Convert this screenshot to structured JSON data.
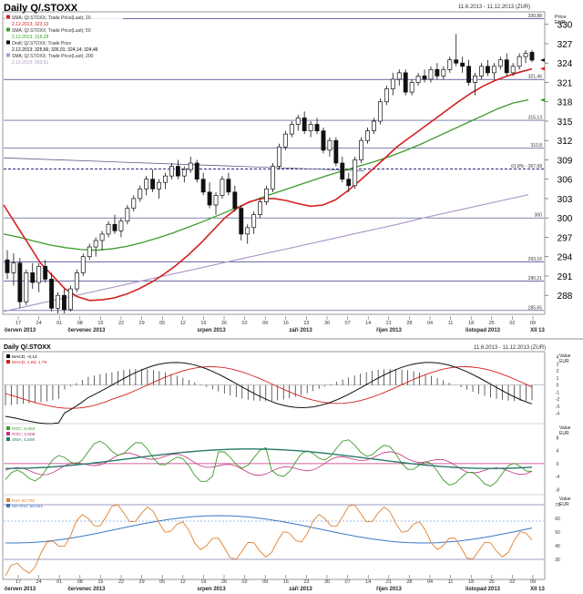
{
  "main": {
    "title": "Daily Q/.STOXX",
    "date_range": "11.6.2013 - 11.12.2013 (ZUR)",
    "price_label": "Price",
    "currency_label": "EUR",
    "legend": [
      {
        "text": "SMA; Q/.STOXX; Trade Price(Last); 20",
        "color": "#d42020"
      },
      {
        "text": "2.12.2013; 323,13",
        "color": "#d42020"
      },
      {
        "text": "SMA; Q/.STOXX; Trade Price(Last); 50",
        "color": "#3a9c2a"
      },
      {
        "text": "2.12.2013; 318,28",
        "color": "#3a9c2a"
      },
      {
        "text": "Ondl; Q/.STOXX; Trade Price",
        "color": "#000000"
      },
      {
        "text": "2.12.2013; 325,66; 326,01; 324,14; 324,46",
        "color": "#000000"
      },
      {
        "text": "SMA; Q/.STOXX; Trade Price(Last); 200",
        "color": "#b09ac8"
      },
      {
        "text": "2.12.2013; 303,61",
        "color": "#b09ac8"
      }
    ],
    "h_levels": [
      {
        "value": 330.88,
        "label": "330,88"
      },
      {
        "value": 321.46,
        "label": "321,46"
      },
      {
        "value": 315.13,
        "label": "315,13"
      },
      {
        "value": 310.8,
        "label": "310,8"
      },
      {
        "value": 307.58,
        "label": "61,8% - 307,58",
        "dashed": true
      },
      {
        "value": 300,
        "label": "300"
      },
      {
        "value": 293.16,
        "label": "293,16"
      },
      {
        "value": 290.21,
        "label": "290,21"
      },
      {
        "value": 285.65,
        "label": "285,65"
      }
    ],
    "y_ticks": [
      "330",
      "327",
      "324",
      "321",
      "318",
      "315",
      "312",
      "309",
      "306",
      "303",
      "300",
      "297",
      "294",
      "291",
      "288"
    ],
    "y_tick_values": [
      330,
      327,
      324,
      321,
      318,
      315,
      312,
      309,
      306,
      303,
      300,
      297,
      294,
      291,
      288
    ],
    "y_range": [
      285.2,
      331.8
    ]
  },
  "x_axis": {
    "day_labels": [
      "17",
      "24",
      "01",
      "08",
      "15",
      "22",
      "29",
      "05",
      "12",
      "19",
      "26",
      "02",
      "09",
      "16",
      "23",
      "30",
      "07",
      "14",
      "21",
      "28",
      "04",
      "11",
      "18",
      "25",
      "02",
      "09"
    ],
    "month_labels": [
      "červen 2013",
      "červenec 2013",
      "srpen 2013",
      "září 2013",
      "říjen 2013",
      "listopad 2013",
      "XII 13"
    ]
  },
  "macd": {
    "legend": [
      {
        "text": "MACD; -0,14",
        "color": "#000000"
      },
      {
        "text": "MACD; 1,66; 1,79",
        "color": "#d42020"
      }
    ],
    "value_label": "Value",
    "currency_label": "EUR",
    "y_ticks": [
      "4",
      "3",
      "2",
      "1",
      "0",
      "-1",
      "-2",
      "-3",
      "-4"
    ],
    "y_tick_values": [
      4,
      3,
      2,
      1,
      0,
      -1,
      -2,
      -3,
      -4
    ],
    "y_range": [
      -5.2,
      4.6
    ]
  },
  "roc": {
    "legend": [
      {
        "text": "ROC; 6,084",
        "color": "#3a9c2a"
      },
      {
        "text": "ROC; 0,508",
        "color": "#c03080"
      },
      {
        "text": "SMA; 4,508",
        "color": "#2a7a6a"
      }
    ],
    "value_label": "Value",
    "currency_label": "EUR",
    "y_ticks": [
      "8",
      "4",
      "0",
      "-4",
      "-8"
    ],
    "y_tick_values": [
      8,
      4,
      0,
      -4,
      -8
    ],
    "y_range": [
      -9,
      12
    ]
  },
  "rsi": {
    "legend": [
      {
        "text": "RSI; 60,782",
        "color": "#e08030"
      },
      {
        "text": "MA-RSI; 58,551",
        "color": "#3a78c8"
      }
    ],
    "value_label": "Value",
    "currency_label": "EUR",
    "y_ticks": [
      "70",
      "60",
      "50",
      "40",
      "30"
    ],
    "y_tick_values": [
      70,
      60,
      50,
      40,
      30
    ],
    "y_range": [
      18,
      76
    ],
    "levels": [
      70,
      58,
      30
    ]
  },
  "chart_data": {
    "type": "candlestick",
    "title": "Daily Q/.STOXX",
    "ylim": [
      285.2,
      331.8
    ],
    "ohlc": [
      [
        293.5,
        295.0,
        290.5,
        291.5
      ],
      [
        291.5,
        294.5,
        289.5,
        293.0
      ],
      [
        293.0,
        293.8,
        286.0,
        287.0
      ],
      [
        287.0,
        292.0,
        286.5,
        291.5
      ],
      [
        291.5,
        293.0,
        289.0,
        290.0
      ],
      [
        290.0,
        293.0,
        288.5,
        292.5
      ],
      [
        292.5,
        293.5,
        290.0,
        290.5
      ],
      [
        290.5,
        291.5,
        285.5,
        286.0
      ],
      [
        286.0,
        288.5,
        285.2,
        288.0
      ],
      [
        288.0,
        289.0,
        285.2,
        285.8
      ],
      [
        285.8,
        289.5,
        285.5,
        289.0
      ],
      [
        289.0,
        292.0,
        288.5,
        291.5
      ],
      [
        291.5,
        294.5,
        291.0,
        294.0
      ],
      [
        294.0,
        296.0,
        293.5,
        295.5
      ],
      [
        295.5,
        297.0,
        294.0,
        296.5
      ],
      [
        296.5,
        298.0,
        295.0,
        297.5
      ],
      [
        297.5,
        299.5,
        297.0,
        299.0
      ],
      [
        299.0,
        300.5,
        297.5,
        298.0
      ],
      [
        298.0,
        300.0,
        297.0,
        299.5
      ],
      [
        299.5,
        302.0,
        299.0,
        301.5
      ],
      [
        301.5,
        303.5,
        301.0,
        303.0
      ],
      [
        303.0,
        305.0,
        302.5,
        304.5
      ],
      [
        304.5,
        306.5,
        303.5,
        306.0
      ],
      [
        306.0,
        307.5,
        304.0,
        304.5
      ],
      [
        304.5,
        306.0,
        303.0,
        305.5
      ],
      [
        305.5,
        307.0,
        304.5,
        306.5
      ],
      [
        306.5,
        308.5,
        306.0,
        308.0
      ],
      [
        308.0,
        309.0,
        306.0,
        306.5
      ],
      [
        306.5,
        308.0,
        305.5,
        307.5
      ],
      [
        307.5,
        309.5,
        307.0,
        308.5
      ],
      [
        308.5,
        309.0,
        305.5,
        306.0
      ],
      [
        306.0,
        307.0,
        303.5,
        304.0
      ],
      [
        304.0,
        305.5,
        301.5,
        302.0
      ],
      [
        302.0,
        304.0,
        300.5,
        303.5
      ],
      [
        303.5,
        306.5,
        303.0,
        306.0
      ],
      [
        306.0,
        307.0,
        303.5,
        304.0
      ],
      [
        304.0,
        305.0,
        301.0,
        301.5
      ],
      [
        301.5,
        302.0,
        296.5,
        297.5
      ],
      [
        297.5,
        299.0,
        296.0,
        298.5
      ],
      [
        298.5,
        301.0,
        297.5,
        300.5
      ],
      [
        300.5,
        303.0,
        300.0,
        302.5
      ],
      [
        302.5,
        305.0,
        302.0,
        304.5
      ],
      [
        304.5,
        308.5,
        304.0,
        308.0
      ],
      [
        308.0,
        311.5,
        307.5,
        311.0
      ],
      [
        311.0,
        313.5,
        310.5,
        313.0
      ],
      [
        313.0,
        315.0,
        312.5,
        314.5
      ],
      [
        314.5,
        316.0,
        313.5,
        315.5
      ],
      [
        315.5,
        316.5,
        313.0,
        313.5
      ],
      [
        313.5,
        315.0,
        312.5,
        314.5
      ],
      [
        314.5,
        315.5,
        313.0,
        313.5
      ],
      [
        313.5,
        314.0,
        310.0,
        310.5
      ],
      [
        310.5,
        312.5,
        309.5,
        312.0
      ],
      [
        312.0,
        312.5,
        308.0,
        308.5
      ],
      [
        308.5,
        309.5,
        305.5,
        306.0
      ],
      [
        306.0,
        307.0,
        304.0,
        305.0
      ],
      [
        305.0,
        309.5,
        304.5,
        309.0
      ],
      [
        309.0,
        312.5,
        308.5,
        312.0
      ],
      [
        312.0,
        314.0,
        311.5,
        313.5
      ],
      [
        313.5,
        315.5,
        313.0,
        315.0
      ],
      [
        315.0,
        318.5,
        314.5,
        318.0
      ],
      [
        318.0,
        320.5,
        317.5,
        320.0
      ],
      [
        320.0,
        322.5,
        319.0,
        321.5
      ],
      [
        321.5,
        323.0,
        320.5,
        322.5
      ],
      [
        322.5,
        323.0,
        319.0,
        319.5
      ],
      [
        319.5,
        321.5,
        319.0,
        321.0
      ],
      [
        321.0,
        322.5,
        320.5,
        322.0
      ],
      [
        322.0,
        323.0,
        321.0,
        321.5
      ],
      [
        321.5,
        323.5,
        321.0,
        323.0
      ],
      [
        323.0,
        324.0,
        321.5,
        322.0
      ],
      [
        322.0,
        323.5,
        321.5,
        323.0
      ],
      [
        323.0,
        325.0,
        322.5,
        324.5
      ],
      [
        324.5,
        328.5,
        323.5,
        324.0
      ],
      [
        324.0,
        325.0,
        322.5,
        323.5
      ],
      [
        323.5,
        324.5,
        320.5,
        321.0
      ],
      [
        321.0,
        322.5,
        319.0,
        322.0
      ],
      [
        322.0,
        324.0,
        321.5,
        323.5
      ],
      [
        323.5,
        324.5,
        322.0,
        322.5
      ],
      [
        322.5,
        324.0,
        321.5,
        323.5
      ],
      [
        323.5,
        325.0,
        323.0,
        324.5
      ],
      [
        324.5,
        325.5,
        322.0,
        322.5
      ],
      [
        322.5,
        324.0,
        322.0,
        323.5
      ],
      [
        323.5,
        325.5,
        323.0,
        325.0
      ],
      [
        325.0,
        326.0,
        324.0,
        325.5
      ],
      [
        325.66,
        326.01,
        324.14,
        324.46
      ]
    ],
    "sma20": [
      302.0,
      299.0,
      296.0,
      293.0,
      291.0,
      289.0,
      287.8,
      287.2,
      287.3,
      287.6,
      288.2,
      289.0,
      290.0,
      291.2,
      292.6,
      294.2,
      296.0,
      298.0,
      300.0,
      301.5,
      302.5,
      303.0,
      303.0,
      302.7,
      302.2,
      301.8,
      302.0,
      302.8,
      304.2,
      305.8,
      307.5,
      309.2,
      311.0,
      312.4,
      313.8,
      315.2,
      316.6,
      318.0,
      319.3,
      320.4,
      321.3,
      322.0,
      322.6,
      323.1
    ],
    "sma50": [
      297.5,
      297.0,
      296.4,
      295.8,
      295.4,
      295.1,
      295.0,
      295.2,
      295.6,
      296.2,
      296.9,
      297.7,
      298.6,
      299.5,
      300.5,
      301.5,
      302.5,
      303.4,
      304.2,
      305.0,
      305.8,
      306.6,
      307.3,
      308.0,
      308.7,
      309.5,
      310.4,
      311.4,
      312.5,
      313.6,
      314.7,
      315.8,
      316.9,
      317.8,
      318.3
    ],
    "sma200": [
      285.5,
      286.4,
      287.3,
      288.2,
      289.1,
      290.0,
      290.9,
      291.8,
      292.7,
      293.6,
      294.5,
      295.4,
      296.3,
      297.2,
      298.1,
      299.0,
      300.0,
      300.9,
      301.8,
      302.7,
      303.6
    ],
    "trendline": [
      309.3,
      307.3
    ]
  }
}
